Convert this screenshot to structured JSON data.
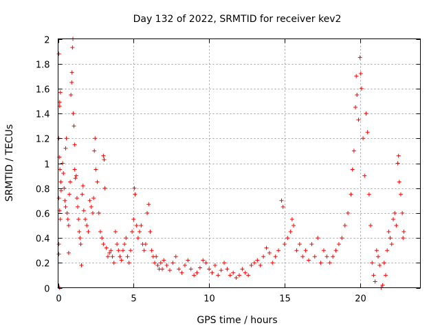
{
  "chart_data": {
    "type": "scatter",
    "title": "Day 132 of 2022, SRMTID for receiver kev2",
    "xlabel": "GPS time / hours",
    "ylabel": "SRMTID / TECUs",
    "xlim": [
      0,
      24
    ],
    "ylim": [
      0,
      2
    ],
    "xticks": [
      0,
      5,
      10,
      15,
      20
    ],
    "xtick_labels": [
      "0",
      "5",
      "10",
      "15",
      "20"
    ],
    "yticks": [
      0,
      0.2,
      0.4,
      0.6,
      0.8,
      1,
      1.2,
      1.4,
      1.6,
      1.8,
      2
    ],
    "ytick_labels": [
      "0",
      "0.2",
      "0.4",
      "0.6",
      "0.8",
      "1",
      "1.2",
      "1.4",
      "1.6",
      "1.8",
      "2"
    ],
    "grid": true,
    "marker": "+",
    "color": "#ff0000",
    "series": [
      {
        "name": "SRMTID",
        "points": [
          [
            0.05,
            1.88
          ],
          [
            0.1,
            1.49
          ],
          [
            0.1,
            1.46
          ],
          [
            0.15,
            1.57
          ],
          [
            0.05,
            1.2
          ],
          [
            0.08,
            1.05
          ],
          [
            0.12,
            0.95
          ],
          [
            0.18,
            0.85
          ],
          [
            0.2,
            0.78
          ],
          [
            0.05,
            0.72
          ],
          [
            0.1,
            0.62
          ],
          [
            0.15,
            0.55
          ],
          [
            0.05,
            0.35
          ],
          [
            0.05,
            0.27
          ],
          [
            0.1,
            0.0
          ],
          [
            0.3,
            1.0
          ],
          [
            0.35,
            0.92
          ],
          [
            0.4,
            0.8
          ],
          [
            0.45,
            0.7
          ],
          [
            0.5,
            0.65
          ],
          [
            0.5,
            1.12
          ],
          [
            0.55,
            1.2
          ],
          [
            0.6,
            0.6
          ],
          [
            0.65,
            0.55
          ],
          [
            0.7,
            0.5
          ],
          [
            0.7,
            0.28
          ],
          [
            0.75,
            0.75
          ],
          [
            0.8,
            0.85
          ],
          [
            0.85,
            1.55
          ],
          [
            0.9,
            1.65
          ],
          [
            0.92,
            1.73
          ],
          [
            0.95,
            1.93
          ],
          [
            0.98,
            2.0
          ],
          [
            1.0,
            1.4
          ],
          [
            1.05,
            1.3
          ],
          [
            1.1,
            1.15
          ],
          [
            1.1,
            0.95
          ],
          [
            1.15,
            0.88
          ],
          [
            1.2,
            0.9
          ],
          [
            1.25,
            0.72
          ],
          [
            1.3,
            0.65
          ],
          [
            1.35,
            0.55
          ],
          [
            1.4,
            0.45
          ],
          [
            1.45,
            0.4
          ],
          [
            1.5,
            0.35
          ],
          [
            1.55,
            0.18
          ],
          [
            1.6,
            0.75
          ],
          [
            1.65,
            0.82
          ],
          [
            1.7,
            0.62
          ],
          [
            1.8,
            0.55
          ],
          [
            1.9,
            0.5
          ],
          [
            2.0,
            0.45
          ],
          [
            2.1,
            0.7
          ],
          [
            2.2,
            0.65
          ],
          [
            2.3,
            0.6
          ],
          [
            2.35,
            0.72
          ],
          [
            2.4,
            1.1
          ],
          [
            2.45,
            1.2
          ],
          [
            2.5,
            0.95
          ],
          [
            2.6,
            0.85
          ],
          [
            2.7,
            0.6
          ],
          [
            2.8,
            0.45
          ],
          [
            2.9,
            0.4
          ],
          [
            3.0,
            0.35
          ],
          [
            3.0,
            1.06
          ],
          [
            3.05,
            1.03
          ],
          [
            3.1,
            0.8
          ],
          [
            3.2,
            0.32
          ],
          [
            3.3,
            0.25
          ],
          [
            3.4,
            0.28
          ],
          [
            3.5,
            0.3
          ],
          [
            3.6,
            0.25
          ],
          [
            3.7,
            0.2
          ],
          [
            3.8,
            0.45
          ],
          [
            3.9,
            0.35
          ],
          [
            4.0,
            0.3
          ],
          [
            4.1,
            0.25
          ],
          [
            4.2,
            0.22
          ],
          [
            4.3,
            0.3
          ],
          [
            4.4,
            0.35
          ],
          [
            4.5,
            0.4
          ],
          [
            4.6,
            0.25
          ],
          [
            4.7,
            0.2
          ],
          [
            4.8,
            0.3
          ],
          [
            4.9,
            0.45
          ],
          [
            5.0,
            0.55
          ],
          [
            5.05,
            0.8
          ],
          [
            5.1,
            0.75
          ],
          [
            5.2,
            0.5
          ],
          [
            5.3,
            0.4
          ],
          [
            5.4,
            0.45
          ],
          [
            5.5,
            0.5
          ],
          [
            5.6,
            0.35
          ],
          [
            5.7,
            0.3
          ],
          [
            5.8,
            0.35
          ],
          [
            5.9,
            0.6
          ],
          [
            6.0,
            0.67
          ],
          [
            6.1,
            0.45
          ],
          [
            6.2,
            0.3
          ],
          [
            6.3,
            0.25
          ],
          [
            6.4,
            0.2
          ],
          [
            6.5,
            0.25
          ],
          [
            6.6,
            0.18
          ],
          [
            6.7,
            0.15
          ],
          [
            6.8,
            0.2
          ],
          [
            6.9,
            0.15
          ],
          [
            7.0,
            0.22
          ],
          [
            7.2,
            0.18
          ],
          [
            7.4,
            0.14
          ],
          [
            7.6,
            0.2
          ],
          [
            7.8,
            0.25
          ],
          [
            8.0,
            0.15
          ],
          [
            8.2,
            0.12
          ],
          [
            8.4,
            0.18
          ],
          [
            8.6,
            0.22
          ],
          [
            8.8,
            0.15
          ],
          [
            9.0,
            0.1
          ],
          [
            9.2,
            0.12
          ],
          [
            9.4,
            0.16
          ],
          [
            9.6,
            0.22
          ],
          [
            9.8,
            0.2
          ],
          [
            10.0,
            0.15
          ],
          [
            10.2,
            0.12
          ],
          [
            10.4,
            0.18
          ],
          [
            10.6,
            0.1
          ],
          [
            10.8,
            0.14
          ],
          [
            11.0,
            0.2
          ],
          [
            11.2,
            0.15
          ],
          [
            11.4,
            0.1
          ],
          [
            11.6,
            0.12
          ],
          [
            11.8,
            0.08
          ],
          [
            12.0,
            0.1
          ],
          [
            12.2,
            0.15
          ],
          [
            12.4,
            0.12
          ],
          [
            12.6,
            0.1
          ],
          [
            12.8,
            0.18
          ],
          [
            13.0,
            0.2
          ],
          [
            13.2,
            0.22
          ],
          [
            13.4,
            0.18
          ],
          [
            13.6,
            0.25
          ],
          [
            13.8,
            0.32
          ],
          [
            14.0,
            0.28
          ],
          [
            14.2,
            0.2
          ],
          [
            14.4,
            0.25
          ],
          [
            14.6,
            0.3
          ],
          [
            14.8,
            0.7
          ],
          [
            14.9,
            0.65
          ],
          [
            15.0,
            0.35
          ],
          [
            15.2,
            0.4
          ],
          [
            15.4,
            0.45
          ],
          [
            15.5,
            0.55
          ],
          [
            15.6,
            0.5
          ],
          [
            15.8,
            0.3
          ],
          [
            16.0,
            0.35
          ],
          [
            16.2,
            0.25
          ],
          [
            16.4,
            0.3
          ],
          [
            16.6,
            0.22
          ],
          [
            16.8,
            0.35
          ],
          [
            17.0,
            0.25
          ],
          [
            17.2,
            0.4
          ],
          [
            17.4,
            0.2
          ],
          [
            17.6,
            0.3
          ],
          [
            17.8,
            0.25
          ],
          [
            18.0,
            0.2
          ],
          [
            18.2,
            0.25
          ],
          [
            18.4,
            0.3
          ],
          [
            18.6,
            0.35
          ],
          [
            18.8,
            0.4
          ],
          [
            19.0,
            0.5
          ],
          [
            19.2,
            0.6
          ],
          [
            19.4,
            0.75
          ],
          [
            19.5,
            0.95
          ],
          [
            19.6,
            1.1
          ],
          [
            19.7,
            1.45
          ],
          [
            19.75,
            1.7
          ],
          [
            19.8,
            1.55
          ],
          [
            19.9,
            1.35
          ],
          [
            20.0,
            1.85
          ],
          [
            20.05,
            1.72
          ],
          [
            20.1,
            1.6
          ],
          [
            20.2,
            1.2
          ],
          [
            20.3,
            0.9
          ],
          [
            20.4,
            1.4
          ],
          [
            20.5,
            1.25
          ],
          [
            20.6,
            0.75
          ],
          [
            20.7,
            0.5
          ],
          [
            20.8,
            0.2
          ],
          [
            20.9,
            0.1
          ],
          [
            21.0,
            0.05
          ],
          [
            21.1,
            0.3
          ],
          [
            21.2,
            0.25
          ],
          [
            21.3,
            0.18
          ],
          [
            21.4,
            0.0
          ],
          [
            21.5,
            0.02
          ],
          [
            21.6,
            0.2
          ],
          [
            21.7,
            0.1
          ],
          [
            21.8,
            0.3
          ],
          [
            21.9,
            0.45
          ],
          [
            22.0,
            0.4
          ],
          [
            22.1,
            0.35
          ],
          [
            22.2,
            0.55
          ],
          [
            22.3,
            0.6
          ],
          [
            22.4,
            0.5
          ],
          [
            22.5,
            1.0
          ],
          [
            22.55,
            1.06
          ],
          [
            22.6,
            0.85
          ],
          [
            22.7,
            0.75
          ],
          [
            22.8,
            0.6
          ],
          [
            22.85,
            0.4
          ],
          [
            22.9,
            0.45
          ]
        ]
      }
    ]
  }
}
